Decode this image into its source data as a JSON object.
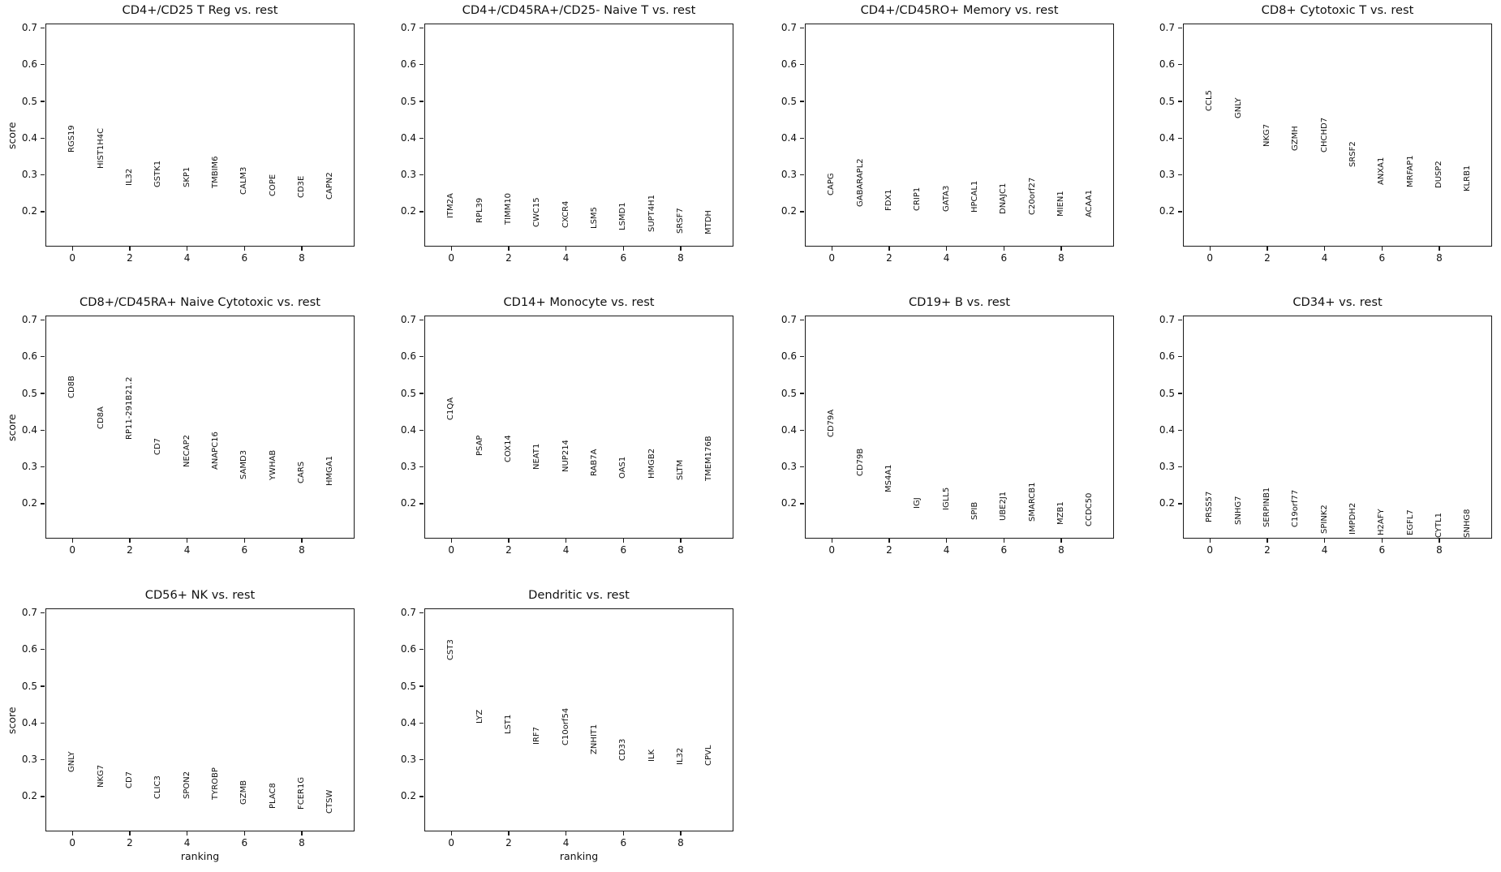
{
  "figure": {
    "background": "#ffffff",
    "text_color": "#111111",
    "spine_color": "#1a1a1a",
    "ylabel": "score",
    "xlabel": "ranking",
    "ytick_labels": [
      "0.7",
      "0.6",
      "0.5",
      "0.4",
      "0.3",
      "0.2"
    ],
    "ytick_values": [
      0.7,
      0.6,
      0.5,
      0.4,
      0.3,
      0.2
    ],
    "xtick_labels": [
      "0",
      "2",
      "4",
      "6",
      "8"
    ],
    "xtick_values": [
      0,
      2,
      4,
      6,
      8
    ],
    "ylim": [
      0.105,
      0.712
    ],
    "xlim": [
      -0.94,
      9.84
    ],
    "grid": "off",
    "legend": "none"
  },
  "chart_data": [
    {
      "type": "scatter",
      "title": "CD4+/CD25 T Reg vs. rest",
      "ylabel": "score",
      "xlabel": "",
      "x": [
        0,
        1,
        2,
        3,
        4,
        5,
        6,
        7,
        8,
        9
      ],
      "genes": [
        "RGS19",
        "HIST1H4C",
        "IL32",
        "GSTK1",
        "SKP1",
        "TMBIM6",
        "CALM3",
        "COPE",
        "CD3E",
        "CAPN2"
      ],
      "scores": [
        0.36,
        0.318,
        0.271,
        0.267,
        0.266,
        0.263,
        0.246,
        0.242,
        0.238,
        0.234
      ]
    },
    {
      "type": "scatter",
      "title": "CD4+/CD45RA+/CD25- Naive T vs. rest",
      "ylabel": "",
      "xlabel": "",
      "x": [
        0,
        1,
        2,
        3,
        4,
        5,
        6,
        7,
        8,
        9
      ],
      "genes": [
        "ITM2A",
        "RPL39",
        "TIMM10",
        "CWC15",
        "CXCR4",
        "LSM5",
        "LSMD1",
        "SUPT4H1",
        "SRSF7",
        "MTDH"
      ],
      "scores": [
        0.183,
        0.169,
        0.165,
        0.159,
        0.156,
        0.154,
        0.149,
        0.145,
        0.14,
        0.138
      ]
    },
    {
      "type": "scatter",
      "title": "CD4+/CD45RO+ Memory vs. rest",
      "ylabel": "",
      "xlabel": "",
      "x": [
        0,
        1,
        2,
        3,
        4,
        5,
        6,
        7,
        8,
        9
      ],
      "genes": [
        "CAPG",
        "GABARAPL2",
        "FDX1",
        "CRIP1",
        "GATA3",
        "HPCAL1",
        "DNAJC1",
        "C20orf27",
        "MIEN1",
        "ACAA1"
      ],
      "scores": [
        0.245,
        0.213,
        0.203,
        0.202,
        0.199,
        0.197,
        0.194,
        0.192,
        0.187,
        0.185
      ]
    },
    {
      "type": "scatter",
      "title": "CD8+ Cytotoxic T vs. rest",
      "ylabel": "",
      "xlabel": "",
      "x": [
        0,
        1,
        2,
        3,
        4,
        5,
        6,
        7,
        8,
        9
      ],
      "genes": [
        "CCL5",
        "GNLY",
        "NKG7",
        "GZMH",
        "CHCHD7",
        "SRSF2",
        "ANXA1",
        "MRFAP1",
        "DUSP2",
        "KLRB1"
      ],
      "scores": [
        0.473,
        0.454,
        0.376,
        0.365,
        0.361,
        0.322,
        0.273,
        0.267,
        0.264,
        0.254
      ]
    },
    {
      "type": "scatter",
      "title": "CD8+/CD45RA+ Naive Cytotoxic vs. rest",
      "ylabel": "score",
      "xlabel": "",
      "x": [
        0,
        1,
        2,
        3,
        4,
        5,
        6,
        7,
        8,
        9
      ],
      "genes": [
        "CD8B",
        "CD8A",
        "RP11-291B21.2",
        "CD7",
        "NECAP2",
        "ANAPC16",
        "SAMD3",
        "YWHAB",
        "CARS",
        "HMGA1"
      ],
      "scores": [
        0.486,
        0.403,
        0.374,
        0.333,
        0.3,
        0.293,
        0.267,
        0.264,
        0.254,
        0.248
      ]
    },
    {
      "type": "scatter",
      "title": "CD14+ Monocyte vs. rest",
      "ylabel": "",
      "xlabel": "",
      "x": [
        0,
        1,
        2,
        3,
        4,
        5,
        6,
        7,
        8,
        9
      ],
      "genes": [
        "C1QA",
        "PSAP",
        "COX14",
        "NEAT1",
        "NUP214",
        "RAB7A",
        "OAS1",
        "HMGB2",
        "SLTM",
        "TMEM176B"
      ],
      "scores": [
        0.427,
        0.331,
        0.312,
        0.292,
        0.286,
        0.275,
        0.269,
        0.268,
        0.264,
        0.262
      ]
    },
    {
      "type": "scatter",
      "title": "CD19+ B vs. rest",
      "ylabel": "",
      "xlabel": "",
      "x": [
        0,
        1,
        2,
        3,
        4,
        5,
        6,
        7,
        8,
        9
      ],
      "genes": [
        "CD79A",
        "CD79B",
        "MS4A1",
        "IGJ",
        "IGLL5",
        "SPIB",
        "UBE2J1",
        "SMARCB1",
        "MZB1",
        "CCDC50"
      ],
      "scores": [
        0.381,
        0.275,
        0.231,
        0.187,
        0.183,
        0.156,
        0.154,
        0.152,
        0.143,
        0.139
      ]
    },
    {
      "type": "scatter",
      "title": "CD34+ vs. rest",
      "ylabel": "",
      "xlabel": "",
      "x": [
        0,
        1,
        2,
        3,
        4,
        5,
        6,
        7,
        8,
        9
      ],
      "genes": [
        "PRSS57",
        "SNHG7",
        "SERPINB1",
        "C19orf77",
        "SPINK2",
        "IMPDH2",
        "H2AFY",
        "EGFL7",
        "CYTL1",
        "SNHG8"
      ],
      "scores": [
        0.15,
        0.142,
        0.136,
        0.135,
        0.118,
        0.116,
        0.114,
        0.114,
        0.108,
        0.108
      ]
    },
    {
      "type": "scatter",
      "title": "CD56+ NK vs. rest",
      "ylabel": "score",
      "xlabel": "ranking",
      "x": [
        0,
        1,
        2,
        3,
        4,
        5,
        6,
        7,
        8,
        9
      ],
      "genes": [
        "GNLY",
        "NKG7",
        "CD7",
        "CLIC3",
        "SPON2",
        "TYROBP",
        "GZMB",
        "PLAC8",
        "FCER1G",
        "CTSW"
      ],
      "scores": [
        0.267,
        0.225,
        0.221,
        0.194,
        0.193,
        0.19,
        0.177,
        0.166,
        0.165,
        0.154
      ]
    },
    {
      "type": "scatter",
      "title": "Dendritic vs. rest",
      "ylabel": "",
      "xlabel": "ranking",
      "x": [
        0,
        1,
        2,
        3,
        4,
        5,
        6,
        7,
        8,
        9
      ],
      "genes": [
        "CST3",
        "LYZ",
        "LST1",
        "IRF7",
        "C10orf54",
        "ZNHIT1",
        "CD33",
        "ILK",
        "IL32",
        "CPVL"
      ],
      "scores": [
        0.571,
        0.398,
        0.369,
        0.341,
        0.34,
        0.314,
        0.298,
        0.294,
        0.285,
        0.284
      ]
    }
  ]
}
